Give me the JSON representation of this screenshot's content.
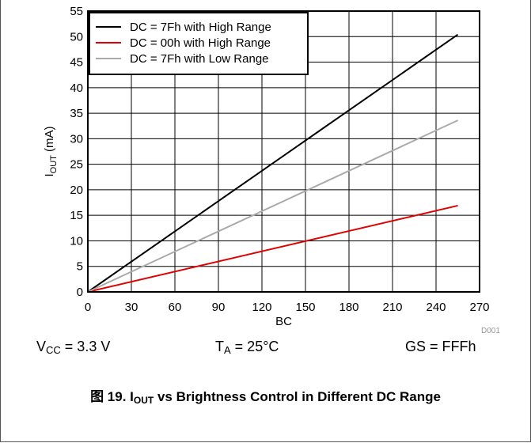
{
  "chart_data": {
    "type": "line",
    "xlabel": "BC",
    "ylabel": {
      "main": "I",
      "sub": "OUT",
      "unit": " (mA)"
    },
    "xlim": [
      0,
      270
    ],
    "ylim": [
      0,
      55
    ],
    "xticks": [
      0,
      30,
      60,
      90,
      120,
      150,
      180,
      210,
      240,
      270
    ],
    "yticks": [
      0,
      5,
      10,
      15,
      20,
      25,
      30,
      35,
      40,
      45,
      50,
      55
    ],
    "grid": true,
    "legend_position": "top-left",
    "series": [
      {
        "name": "DC = 7Fh with High Range",
        "color": "#000000",
        "x": [
          0,
          255
        ],
        "y": [
          0,
          50.4
        ]
      },
      {
        "name": "DC = 00h with High Range",
        "color": "#e00000",
        "x": [
          0,
          255
        ],
        "y": [
          0,
          16.9
        ]
      },
      {
        "name": "DC = 7Fh with Low Range",
        "color": "#aaaaaa",
        "x": [
          0,
          255
        ],
        "y": [
          0,
          33.6
        ]
      }
    ]
  },
  "source_id": "D001",
  "conditions": [
    {
      "main": "V",
      "sub": "CC",
      "rest": " = 3.3 V"
    },
    {
      "main": "T",
      "sub": "A",
      "rest": " = 25°C"
    },
    {
      "main": "GS = FFFh",
      "sub": "",
      "rest": ""
    }
  ],
  "caption": {
    "prefix": "图 19. I",
    "sub": "OUT",
    "rest": " vs Brightness Control in Different DC Range"
  }
}
